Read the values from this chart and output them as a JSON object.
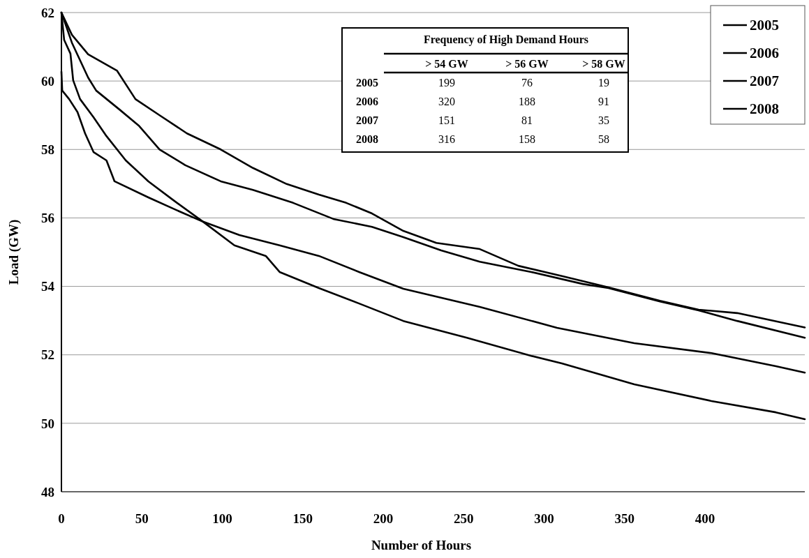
{
  "chart_data": {
    "type": "line",
    "xlabel": "Number of Hours",
    "ylabel": "Load (GW)",
    "xlim": [
      0,
      462
    ],
    "xticks": [
      0,
      50,
      100,
      150,
      200,
      250,
      300,
      350,
      400
    ],
    "ylim": [
      48,
      62
    ],
    "yticks": [
      48,
      50,
      52,
      54,
      56,
      58,
      60,
      62
    ],
    "grid": "y",
    "legend": "top right",
    "marker": "none",
    "line_style": "solid",
    "series": [
      {
        "name": "2005",
        "color": "#000000",
        "x": [
          0,
          0.5,
          4.8,
          10,
          14.7,
          20,
          28,
          33,
          54,
          69.5,
          88,
          110.6,
          135.6,
          160,
          185,
          212.5,
          260,
          308,
          356,
          404,
          444,
          462
        ],
        "values": [
          60.27,
          59.72,
          59.47,
          59.09,
          58.47,
          57.92,
          57.68,
          57.07,
          56.6,
          56.27,
          55.89,
          55.5,
          55.2,
          54.89,
          54.42,
          53.93,
          53.4,
          52.79,
          52.34,
          52.05,
          51.67,
          51.48
        ]
      },
      {
        "name": "2006",
        "color": "#000000",
        "x": [
          0,
          6.5,
          16.6,
          34.6,
          46,
          61,
          78,
          99,
          119,
          140,
          160,
          177,
          193,
          212.5,
          233,
          260,
          284,
          311,
          340,
          372,
          396,
          420,
          462
        ],
        "values": [
          62,
          61.35,
          60.78,
          60.3,
          59.47,
          59,
          58.47,
          58,
          57.46,
          56.99,
          56.68,
          56.44,
          56.13,
          55.62,
          55.27,
          55.09,
          54.6,
          54.3,
          53.97,
          53.58,
          53.32,
          53.22,
          52.8
        ]
      },
      {
        "name": "2007",
        "color": "#000000",
        "x": [
          0,
          1.7,
          5.6,
          7.3,
          11.6,
          20,
          28,
          40,
          54,
          69.5,
          88,
          107.5,
          127,
          135.6,
          160,
          185,
          212.5,
          252,
          292,
          311,
          356,
          404,
          444,
          462
        ],
        "values": [
          62,
          61.2,
          60.8,
          60.02,
          59.47,
          58.94,
          58.39,
          57.68,
          57.07,
          56.52,
          55.89,
          55.2,
          54.89,
          54.42,
          53.95,
          53.5,
          52.99,
          52.5,
          51.97,
          51.75,
          51.14,
          50.65,
          50.32,
          50.12
        ]
      },
      {
        "name": "2008",
        "color": "#000000",
        "x": [
          0,
          6.5,
          16.6,
          21.6,
          36,
          48,
          61,
          77,
          99,
          119,
          144,
          169,
          193,
          212.5,
          236,
          260,
          292,
          324,
          340,
          372,
          396,
          420,
          462
        ],
        "values": [
          62,
          61.12,
          60.1,
          59.72,
          59.17,
          58.7,
          58,
          57.54,
          57.07,
          56.82,
          56.44,
          55.97,
          55.74,
          55.44,
          55.05,
          54.72,
          54.42,
          54.07,
          53.95,
          53.56,
          53.3,
          52.99,
          52.5
        ]
      }
    ],
    "annotations": [
      "Frequency of High Demand Hours",
      "> 54 GW",
      "> 56 GW",
      "> 58 GW",
      "2005",
      "199",
      "76",
      "19",
      "2006",
      "320",
      "188",
      "91",
      "2007",
      "151",
      "81",
      "35",
      "2008",
      "316",
      "158",
      "58"
    ]
  }
}
